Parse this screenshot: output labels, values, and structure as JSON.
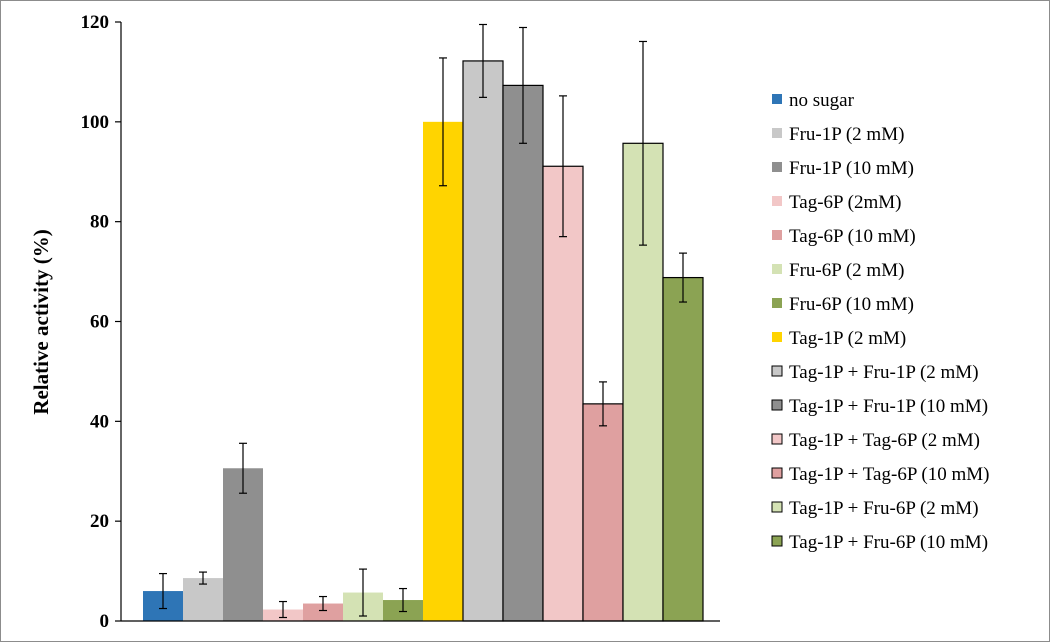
{
  "chart_data": {
    "type": "bar",
    "title": "",
    "xlabel": "",
    "ylabel": "Relative activity (%)",
    "ylim": [
      0,
      120
    ],
    "yticks": [
      0,
      20,
      40,
      60,
      80,
      100,
      120
    ],
    "grid": false,
    "legend_position": "right",
    "series": [
      {
        "name": "no sugar",
        "value": 6.0,
        "error": 3.5,
        "color": "#2e75b6",
        "outlined": false
      },
      {
        "name": "Fru-1P (2 mM)",
        "value": 8.6,
        "error": 1.2,
        "color": "#c8c8c8",
        "outlined": false
      },
      {
        "name": "Fru-1P (10 mM)",
        "value": 30.6,
        "error": 5.0,
        "color": "#8f8f8f",
        "outlined": false
      },
      {
        "name": "Tag-6P (2mM)",
        "value": 2.3,
        "error": 1.6,
        "color": "#f2c7c7",
        "outlined": false
      },
      {
        "name": "Tag-6P (10 mM)",
        "value": 3.5,
        "error": 1.4,
        "color": "#dfa0a0",
        "outlined": false
      },
      {
        "name": "Fru-6P (2 mM)",
        "value": 5.7,
        "error": 4.7,
        "color": "#d4e2b4",
        "outlined": false
      },
      {
        "name": "Fru-6P (10 mM)",
        "value": 4.2,
        "error": 2.3,
        "color": "#8ba353",
        "outlined": false
      },
      {
        "name": "Tag-1P (2 mM)",
        "value": 100.0,
        "error": 12.8,
        "color": "#ffd400",
        "outlined": false
      },
      {
        "name": "Tag-1P + Fru-1P (2 mM)",
        "value": 112.2,
        "error": 7.3,
        "color": "#c8c8c8",
        "outlined": true
      },
      {
        "name": "Tag-1P + Fru-1P (10 mM)",
        "value": 107.3,
        "error": 11.6,
        "color": "#8f8f8f",
        "outlined": true
      },
      {
        "name": "Tag-1P + Tag-6P (2 mM)",
        "value": 91.1,
        "error": 14.1,
        "color": "#f2c7c7",
        "outlined": true
      },
      {
        "name": "Tag-1P + Tag-6P (10 mM)",
        "value": 43.5,
        "error": 4.4,
        "color": "#dfa0a0",
        "outlined": true
      },
      {
        "name": "Tag-1P + Fru-6P (2 mM)",
        "value": 95.7,
        "error": 20.4,
        "color": "#d4e2b4",
        "outlined": true
      },
      {
        "name": "Tag-1P + Fru-6P (10 mM)",
        "value": 68.8,
        "error": 4.9,
        "color": "#8ba353",
        "outlined": true
      }
    ]
  }
}
